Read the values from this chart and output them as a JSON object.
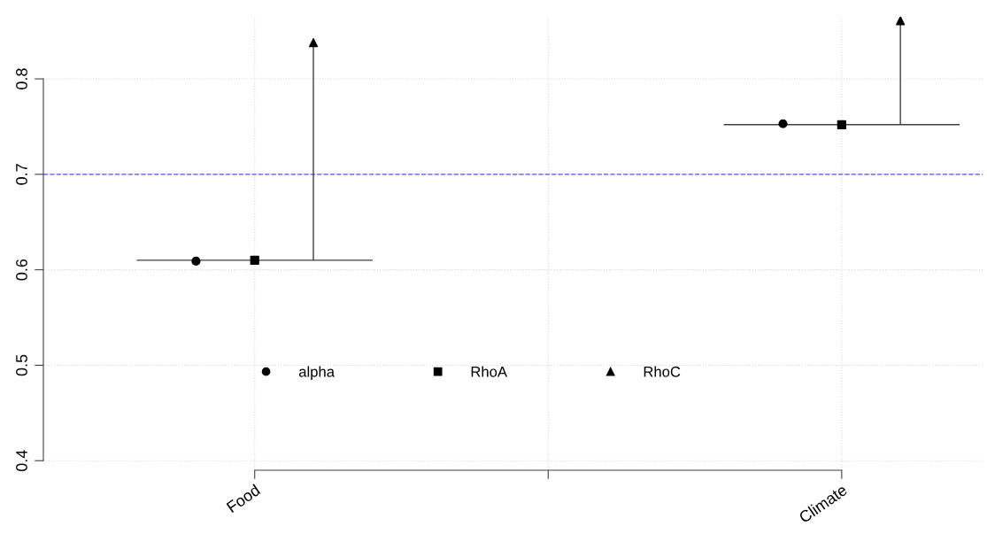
{
  "chart_data": {
    "type": "scatter",
    "categories": [
      "Food",
      null,
      "Climate"
    ],
    "ylim": [
      0.39,
      0.865
    ],
    "yticks": [
      0.4,
      0.5,
      0.6,
      0.7,
      0.8
    ],
    "grid": true,
    "legend": "bottom",
    "series": [
      {
        "name": "alpha",
        "color": "#000000",
        "marker": "circle",
        "values": [
          0.609,
          null,
          0.753
        ]
      },
      {
        "name": "RhoA",
        "color": "#000000",
        "marker": "square",
        "values": [
          0.61,
          null,
          0.752
        ]
      },
      {
        "name": "RhoC",
        "color": "#000000",
        "marker": "triangle",
        "values": [
          0.838,
          null,
          0.861
        ],
        "errors": [
          [
            0.61,
            0.838
          ],
          null,
          [
            0.752,
            0.861
          ]
        ]
      }
    ],
    "ref_lines": [
      {
        "axis": "y",
        "value": 0.7,
        "color": "#5050ff",
        "line_style": "dashed"
      }
    ]
  }
}
